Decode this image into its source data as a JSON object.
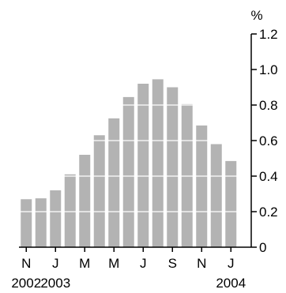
{
  "chart_data": {
    "type": "bar",
    "unit_label": "%",
    "categories": [
      "2002-11",
      "2002-12",
      "2003-01",
      "2003-02",
      "2003-03",
      "2003-04",
      "2003-05",
      "2003-06",
      "2003-07",
      "2003-08",
      "2003-09",
      "2003-10",
      "2003-11",
      "2003-12",
      "2004-01"
    ],
    "values": [
      0.27,
      0.275,
      0.32,
      0.41,
      0.52,
      0.63,
      0.725,
      0.845,
      0.92,
      0.945,
      0.9,
      0.805,
      0.685,
      0.58,
      0.485
    ],
    "x_tick_labels": [
      {
        "category": "2002-11",
        "label": "N"
      },
      {
        "category": "2003-01",
        "label": "J"
      },
      {
        "category": "2003-03",
        "label": "M"
      },
      {
        "category": "2003-05",
        "label": "M"
      },
      {
        "category": "2003-07",
        "label": "J"
      },
      {
        "category": "2003-09",
        "label": "S"
      },
      {
        "category": "2003-11",
        "label": "N"
      },
      {
        "category": "2004-01",
        "label": "J"
      }
    ],
    "year_labels": [
      {
        "category": "2002-11",
        "label": "2002"
      },
      {
        "category": "2003-01",
        "label": "2003"
      },
      {
        "category": "2004-01",
        "label": "2004"
      }
    ],
    "y_ticks": [
      0,
      0.2,
      0.4,
      0.6,
      0.8,
      1.0,
      1.2
    ],
    "y_tick_labels": [
      "0",
      "0.2",
      "0.4",
      "0.6",
      "0.8",
      "1.0",
      "1.2"
    ],
    "ylim": [
      0,
      1.2
    ],
    "y_axis_side": "right",
    "grid": "horizontal white lines through bars",
    "colors": {
      "bar": "#b3b3b3",
      "axis": "#000000",
      "grid": "#ffffff"
    }
  }
}
